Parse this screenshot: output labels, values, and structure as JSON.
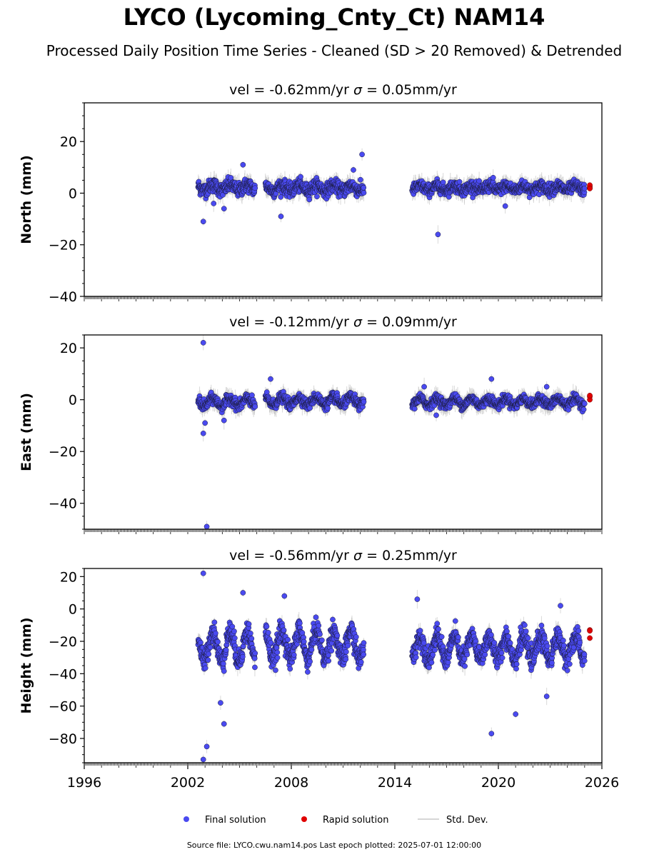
{
  "figure": {
    "title": "LYCO (Lycoming_Cnty_Ct) NAM14",
    "subtitle": "Processed Daily Position Time Series - Cleaned (SD > 20 Removed) & Detrended",
    "footer": "Source file: LYCO.cwu.nam14.pos  Last epoch plotted: 2025-07-01 12:00:00"
  },
  "legend": {
    "placement": "bottom-center",
    "items": [
      {
        "label": "Final solution",
        "color": "#4a4af0",
        "kind": "marker"
      },
      {
        "label": "Rapid solution",
        "color": "#e00000",
        "kind": "marker"
      },
      {
        "label": "Std. Dev.",
        "color": "#c8c8c8",
        "kind": "line"
      }
    ]
  },
  "colors": {
    "final": "#4a4af0",
    "rapid": "#e00000",
    "stddev": "#c8c8c8",
    "edge": "#1a1a3a"
  },
  "chart_data": [
    {
      "type": "scatter",
      "panel": "north",
      "title_prefix": "vel = -0.62mm/yr",
      "title_sigma": " = 0.05mm/yr",
      "ylabel": "North (mm)",
      "xlim": [
        1996,
        2026
      ],
      "ylim": [
        -40,
        35
      ],
      "yticks": [
        -40,
        -20,
        0,
        20
      ],
      "xticks": [],
      "grid": false,
      "segments": [
        {
          "start": 2002.6,
          "end": 2005.9,
          "mean": 2.2,
          "amp": 1.0,
          "noise": 2.4
        },
        {
          "start": 2006.5,
          "end": 2012.2,
          "mean": 2.0,
          "amp": 1.0,
          "noise": 2.3
        },
        {
          "start": 2015.0,
          "end": 2025.0,
          "mean": 2.0,
          "amp": 0.8,
          "noise": 2.0
        }
      ],
      "outliers": [
        [
          2002.9,
          -11
        ],
        [
          2003.5,
          -4
        ],
        [
          2004.1,
          -6
        ],
        [
          2005.2,
          11
        ],
        [
          2007.4,
          -9
        ],
        [
          2011.6,
          9
        ],
        [
          2012.1,
          15
        ],
        [
          2016.5,
          -16
        ],
        [
          2019.7,
          6
        ],
        [
          2020.4,
          -5
        ]
      ],
      "rapid": [
        [
          2025.3,
          2.0
        ],
        [
          2025.3,
          2.6
        ],
        [
          2025.3,
          3.1
        ],
        [
          2025.3,
          1.8
        ]
      ]
    },
    {
      "type": "scatter",
      "panel": "east",
      "title_prefix": "vel = -0.12mm/yr",
      "title_sigma": " = 0.09mm/yr",
      "ylabel": "East (mm)",
      "xlim": [
        1996,
        2026
      ],
      "ylim": [
        -50,
        25
      ],
      "yticks": [
        -40,
        -20,
        0,
        20
      ],
      "xticks": [],
      "grid": false,
      "segments": [
        {
          "start": 2002.6,
          "end": 2005.9,
          "mean": -1.0,
          "amp": 1.5,
          "noise": 1.8
        },
        {
          "start": 2006.5,
          "end": 2012.2,
          "mean": -0.5,
          "amp": 1.5,
          "noise": 1.7
        },
        {
          "start": 2015.0,
          "end": 2025.0,
          "mean": -0.8,
          "amp": 1.3,
          "noise": 1.6
        }
      ],
      "outliers": [
        [
          2002.9,
          22
        ],
        [
          2002.9,
          -13
        ],
        [
          2003.1,
          -49
        ],
        [
          2003.0,
          -9
        ],
        [
          2004.1,
          -8
        ],
        [
          2006.8,
          8
        ],
        [
          2015.7,
          5
        ],
        [
          2016.4,
          -6
        ],
        [
          2019.6,
          8
        ],
        [
          2022.8,
          5
        ]
      ],
      "rapid": [
        [
          2025.3,
          1.2
        ],
        [
          2025.3,
          0.0
        ],
        [
          2025.3,
          1.6
        ]
      ]
    },
    {
      "type": "scatter",
      "panel": "height",
      "title_prefix": "vel = -0.56mm/yr",
      "title_sigma": " = 0.25mm/yr",
      "ylabel": "Height (mm)",
      "xlim": [
        1996,
        2026
      ],
      "ylim": [
        -95,
        25
      ],
      "yticks": [
        -80,
        -60,
        -40,
        -20,
        0,
        20
      ],
      "xticks": [
        1996,
        2002,
        2008,
        2014,
        2020,
        2026
      ],
      "grid": false,
      "segments": [
        {
          "start": 2002.6,
          "end": 2005.9,
          "mean": -23,
          "amp": 9,
          "noise": 6
        },
        {
          "start": 2006.5,
          "end": 2012.2,
          "mean": -22,
          "amp": 9,
          "noise": 6
        },
        {
          "start": 2015.0,
          "end": 2025.0,
          "mean": -24,
          "amp": 7,
          "noise": 5.5
        }
      ],
      "outliers": [
        [
          2002.9,
          22
        ],
        [
          2002.9,
          -93
        ],
        [
          2003.1,
          -85
        ],
        [
          2003.9,
          -58
        ],
        [
          2004.1,
          -71
        ],
        [
          2005.2,
          10
        ],
        [
          2007.6,
          8
        ],
        [
          2015.3,
          6
        ],
        [
          2019.6,
          -77
        ],
        [
          2021.0,
          -65
        ],
        [
          2022.8,
          -54
        ],
        [
          2023.6,
          2
        ]
      ],
      "rapid": [
        [
          2025.3,
          -13
        ],
        [
          2025.3,
          -18
        ],
        [
          2025.3,
          -13.5
        ]
      ]
    }
  ]
}
